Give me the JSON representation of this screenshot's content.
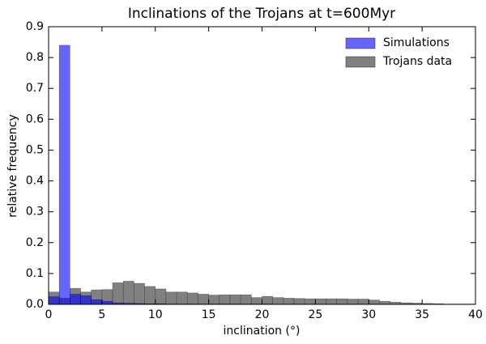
{
  "chart_data": {
    "type": "histogram",
    "title": "Inclinations of the Trojans at t=600Myr",
    "x_label": "inclination (°)",
    "y_label": "relative frequency",
    "bins": [
      0,
      1,
      2,
      3,
      4,
      5,
      6,
      7,
      8,
      9,
      10,
      11,
      12,
      13,
      14,
      15,
      16,
      17,
      18,
      19,
      20,
      21,
      22,
      23,
      24,
      25,
      26,
      27,
      28,
      29,
      30,
      31,
      32,
      33,
      34,
      35,
      36,
      37,
      38,
      39,
      40
    ],
    "series": [
      {
        "name": "Trojans data",
        "color": "#808080",
        "values": [
          0.04,
          0.02,
          0.052,
          0.04,
          0.047,
          0.048,
          0.07,
          0.075,
          0.068,
          0.058,
          0.05,
          0.04,
          0.04,
          0.037,
          0.033,
          0.03,
          0.031,
          0.031,
          0.031,
          0.022,
          0.026,
          0.022,
          0.02,
          0.019,
          0.018,
          0.018,
          0.018,
          0.018,
          0.017,
          0.017,
          0.014,
          0.01,
          0.007,
          0.005,
          0.004,
          0.003,
          0.002,
          0.001,
          0.001,
          0.001
        ]
      },
      {
        "name": "Simulations",
        "color": "#0000ff",
        "values": [
          0.025,
          0.84,
          0.033,
          0.028,
          0.015,
          0.01,
          0.005,
          0.004,
          0.003,
          0.002,
          0.002,
          0.001,
          0.001,
          0.001,
          0.001,
          0.001,
          0.001,
          0.001,
          0.001,
          0.001,
          0.001,
          0,
          0,
          0,
          0,
          0,
          0,
          0,
          0,
          0,
          0,
          0,
          0,
          0,
          0,
          0,
          0,
          0,
          0,
          0
        ]
      }
    ],
    "xlim": [
      0,
      40
    ],
    "xticks": [
      0,
      5,
      10,
      15,
      20,
      25,
      30,
      35,
      40
    ],
    "ylim": [
      0,
      0.9
    ],
    "yticks": [
      {
        "value": 0,
        "label": "0.0"
      },
      0.1,
      0.2,
      0.3,
      0.4,
      0.5,
      0.6,
      0.7,
      0.8,
      0.9
    ],
    "legend_position": "upper right"
  }
}
